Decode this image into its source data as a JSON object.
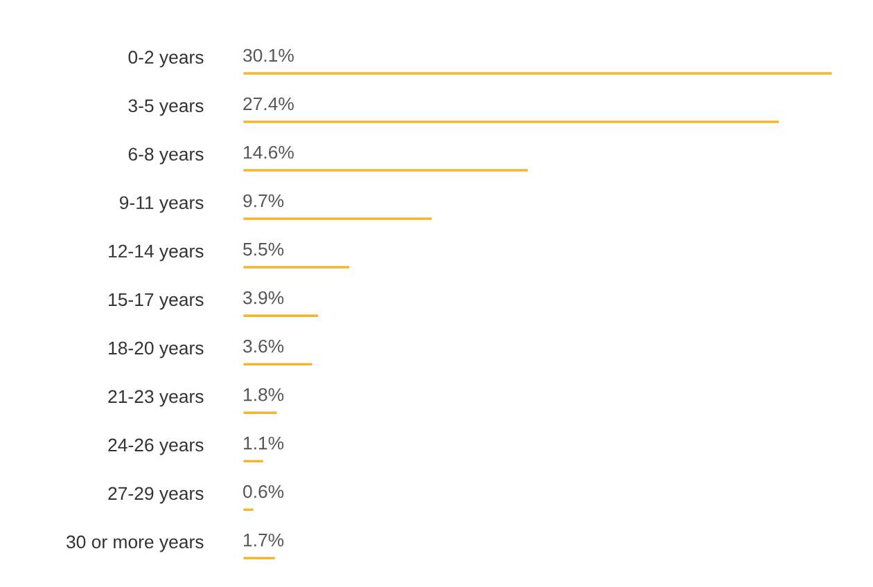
{
  "chart_data": {
    "type": "bar",
    "orientation": "horizontal",
    "categories": [
      "0-2 years",
      "3-5 years",
      "6-8 years",
      "9-11 years",
      "12-14 years",
      "15-17 years",
      "18-20 years",
      "21-23 years",
      "24-26 years",
      "27-29 years",
      "30 or more years"
    ],
    "values": [
      30.1,
      27.4,
      14.6,
      9.7,
      5.5,
      3.9,
      3.6,
      1.8,
      1.1,
      0.6,
      1.7
    ],
    "value_labels": [
      "30.1%",
      "27.4%",
      "14.6%",
      "9.7%",
      "5.5%",
      "3.9%",
      "3.6%",
      "1.8%",
      "1.1%",
      "0.6%",
      "1.7%"
    ],
    "color": "#f2b730",
    "grid": false,
    "legend": false
  }
}
